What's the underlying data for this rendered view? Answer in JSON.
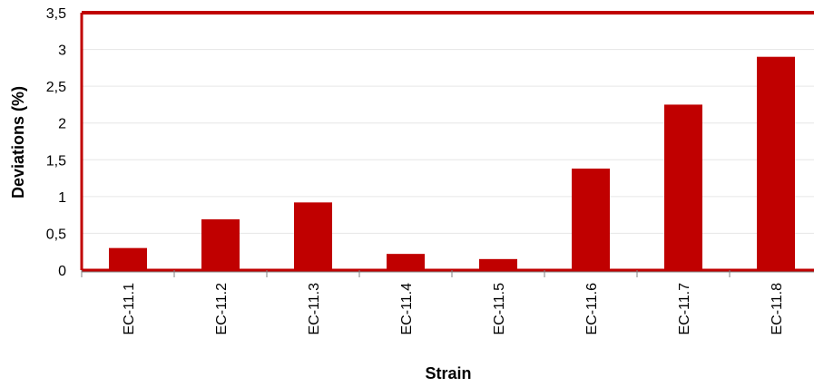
{
  "chart_data": {
    "type": "bar",
    "title": "",
    "xlabel": "Strain",
    "ylabel": "Deviations (%)",
    "categories": [
      "EC-11.1",
      "EC-11.2",
      "EC-11.3",
      "EC-11.4",
      "EC-11.5",
      "EC-11.6",
      "EC-11.7",
      "EC-11.8"
    ],
    "values": [
      0.3,
      0.69,
      0.92,
      0.22,
      0.15,
      1.38,
      2.25,
      2.9
    ],
    "ylim": [
      0,
      3.5
    ],
    "yticks": [
      "0",
      "0,5",
      "1",
      "1,5",
      "2",
      "2,5",
      "3",
      "3,5"
    ],
    "grid": true,
    "legend": "none",
    "colors": {
      "bar": "#c00000",
      "frame": "#c00000",
      "grid": "#e6e6e6",
      "axis": "#808080"
    }
  }
}
